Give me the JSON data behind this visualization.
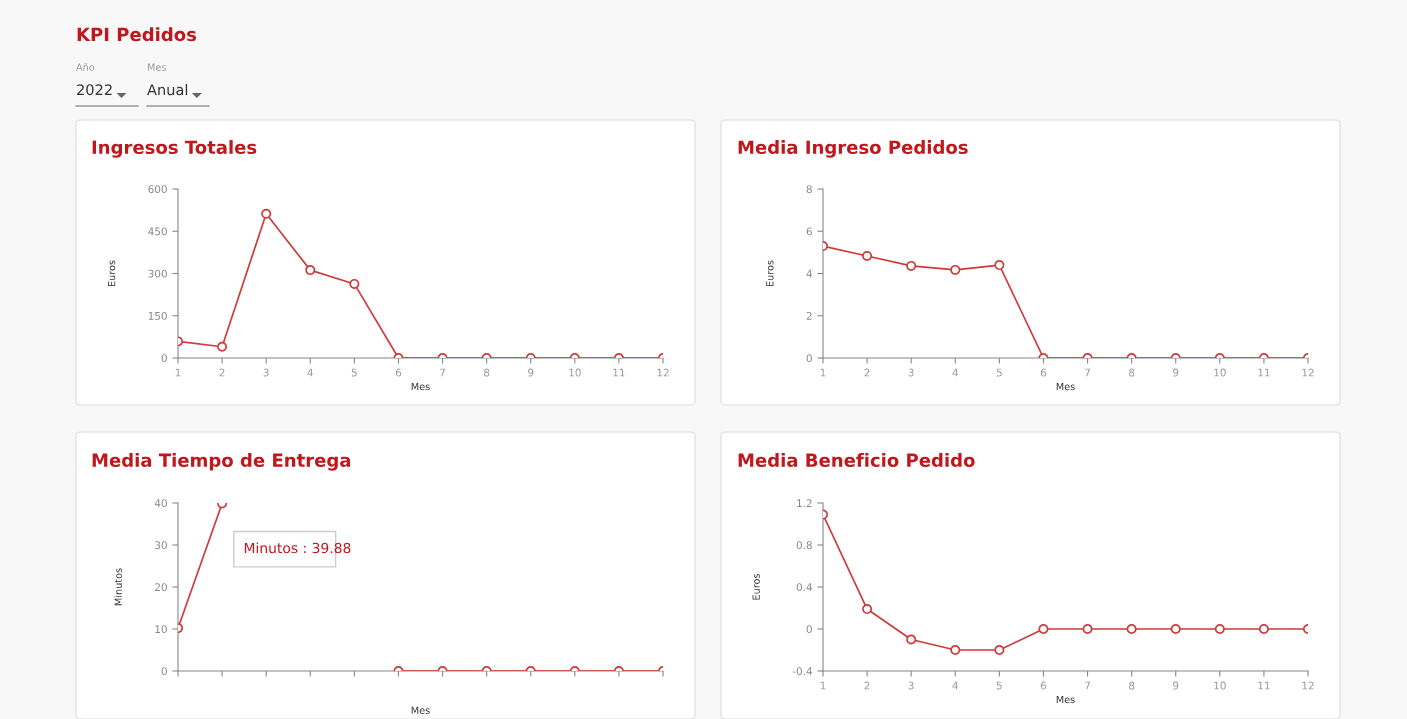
{
  "chart_data": [
    {
      "type": "other",
      "title": "KPI Pedidos",
      "annotations": [
        "Año",
        "2022",
        "Mes",
        "Anual"
      ]
    },
    {
      "type": "line",
      "title": "Ingresos Totales",
      "xlabel": "Mes",
      "ylabel": "Euros",
      "categories": [
        "1",
        "2",
        "3",
        "4",
        "5",
        "6",
        "7",
        "8",
        "9",
        "10",
        "11",
        "12"
      ],
      "series": [
        {
          "color": "#d0393b",
          "values": [
            59,
            40,
            512,
            312,
            263,
            0,
            0,
            0,
            0,
            0,
            0,
            0
          ]
        }
      ],
      "ylim": [
        0,
        600
      ],
      "yticks": [
        0,
        150,
        300,
        450,
        600
      ],
      "marker": "circle",
      "line_style": "solid",
      "grid": false
    },
    {
      "type": "line",
      "title": "Media Ingreso Pedidos",
      "xlabel": "Mes",
      "ylabel": "Euros",
      "categories": [
        "1",
        "2",
        "3",
        "4",
        "5",
        "6",
        "7",
        "8",
        "9",
        "10",
        "11",
        "12"
      ],
      "series": [
        {
          "color": "#d0393b",
          "values": [
            5.3,
            4.83,
            4.36,
            4.17,
            4.4,
            0,
            0,
            0,
            0,
            0,
            0,
            0
          ]
        }
      ],
      "ylim": [
        0,
        8
      ],
      "yticks": [
        0,
        2,
        4,
        6,
        8
      ],
      "marker": "circle",
      "line_style": "solid",
      "grid": false
    },
    {
      "type": "line",
      "title": "Media Tiempo de Entrega",
      "xlabel": "Mes",
      "ylabel": "Minutos",
      "categories": [
        null,
        null,
        null,
        null,
        null,
        null,
        null,
        null,
        null,
        null,
        null,
        null
      ],
      "series": [
        {
          "color": "#d0393b",
          "values": [
            10.2,
            39.88,
            null,
            null,
            null,
            0,
            0,
            0,
            0,
            0,
            0,
            0
          ]
        }
      ],
      "ylim": [
        0,
        40
      ],
      "yticks": [
        0,
        10,
        20,
        30,
        40
      ],
      "marker": "circle",
      "line_style": "solid",
      "grid": false,
      "annotations": [
        "Minutos : 39.88"
      ]
    },
    {
      "type": "line",
      "title": "Media Beneficio Pedido",
      "xlabel": "Mes",
      "ylabel": "Euros",
      "categories": [
        "1",
        "2",
        "3",
        "4",
        "5",
        "6",
        "7",
        "8",
        "9",
        "10",
        "11",
        "12"
      ],
      "series": [
        {
          "color": "#d0393b",
          "values": [
            1.09,
            0.19,
            -0.1,
            -0.2,
            -0.2,
            0,
            0,
            0,
            0,
            0,
            0,
            0
          ]
        }
      ],
      "ylim": [
        -0.4,
        1.2
      ],
      "yticks": [
        -0.4,
        0,
        0.4,
        0.8,
        1.2
      ],
      "marker": "circle",
      "line_style": "solid",
      "grid": false
    }
  ]
}
